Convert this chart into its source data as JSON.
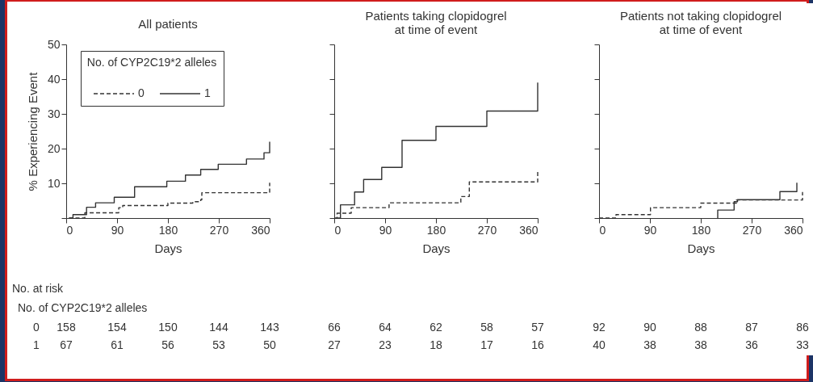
{
  "chart_data": [
    {
      "type": "step",
      "title": "All patients",
      "xlabel": "Days",
      "ylabel": "% Experiencing Event",
      "legend_title": "No. of CYP2C19*2 alleles",
      "legend": "top",
      "xlim": [
        0,
        360
      ],
      "xticks": [
        0,
        90,
        180,
        270,
        360
      ],
      "ylim": [
        0,
        50
      ],
      "yticks": [
        {
          "value": 0,
          "label": null
        },
        10,
        20,
        30,
        40,
        50
      ],
      "series": [
        {
          "name": "0",
          "color": "#333333",
          "line_style": "dashed",
          "x": [
            5,
            33,
            93,
            100,
            180,
            224,
            238,
            240,
            360,
            360
          ],
          "values": [
            0,
            1.5,
            3.0,
            3.6,
            4.3,
            4.7,
            5.3,
            7.3,
            7.3,
            10.2
          ]
        },
        {
          "name": "1",
          "color": "#333333",
          "line_style": "solid",
          "x": [
            5,
            12,
            36,
            52,
            85,
            121,
            178,
            211,
            238,
            269,
            319,
            350,
            360,
            360
          ],
          "values": [
            0,
            1.0,
            3.1,
            4.4,
            6.0,
            9.0,
            10.6,
            12.4,
            14.0,
            15.5,
            17.0,
            18.8,
            18.8,
            22.0
          ]
        }
      ],
      "annotations": [
        "No. at risk",
        "No. of CYP2C19*2 alleles",
        "0",
        "158",
        "154",
        "150",
        "144",
        "143",
        "1",
        "67",
        "61",
        "56",
        "53",
        "50"
      ]
    },
    {
      "type": "step",
      "title": "Patients taking clopidogrel\nat time of event",
      "xlabel": "Days",
      "xlim": [
        0,
        360
      ],
      "xticks": [
        0,
        90,
        180,
        270,
        360
      ],
      "ylim": [
        0,
        50
      ],
      "yticks": [
        0,
        10,
        20,
        30,
        40,
        50
      ],
      "tick_labels": "x",
      "series": [
        {
          "color": "#333333",
          "line_style": "dashed",
          "x": [
            0,
            5,
            30,
            97,
            224,
            239,
            360,
            360
          ],
          "values": [
            0,
            1.4,
            3.0,
            4.4,
            6.2,
            10.4,
            10.4,
            13.9
          ]
        },
        {
          "color": "#333333",
          "line_style": "solid",
          "x": [
            4,
            11,
            36,
            52,
            84,
            120,
            180,
            270,
            360,
            360
          ],
          "values": [
            0,
            3.8,
            7.5,
            11.1,
            14.6,
            22.4,
            26.4,
            30.8,
            30.8,
            39.0
          ]
        }
      ],
      "annotations": [
        "66",
        "64",
        "62",
        "58",
        "57",
        "27",
        "23",
        "18",
        "17",
        "16"
      ]
    },
    {
      "type": "step",
      "title": "Patients not taking clopidogrel\nat time of event",
      "xlabel": "Days",
      "xlim": [
        0,
        360
      ],
      "xticks": [
        0,
        90,
        180,
        270,
        360
      ],
      "ylim": [
        0,
        50
      ],
      "yticks": [
        0,
        10,
        20,
        30,
        40,
        50
      ],
      "tick_labels": "x",
      "series": [
        {
          "color": "#333333",
          "line_style": "dashed",
          "x": [
            0,
            30,
            91,
            180,
            243,
            360,
            360
          ],
          "values": [
            0,
            1.0,
            3.0,
            4.3,
            5.2,
            5.2,
            7.5
          ]
        },
        {
          "color": "#333333",
          "line_style": "solid",
          "x": [
            210,
            210,
            239,
            245,
            320,
            350,
            350
          ],
          "values": [
            0,
            2.3,
            4.7,
            5.3,
            7.6,
            7.6,
            10.2
          ]
        }
      ],
      "annotations": [
        "92",
        "90",
        "88",
        "87",
        "86",
        "40",
        "38",
        "38",
        "36",
        "33"
      ]
    }
  ]
}
